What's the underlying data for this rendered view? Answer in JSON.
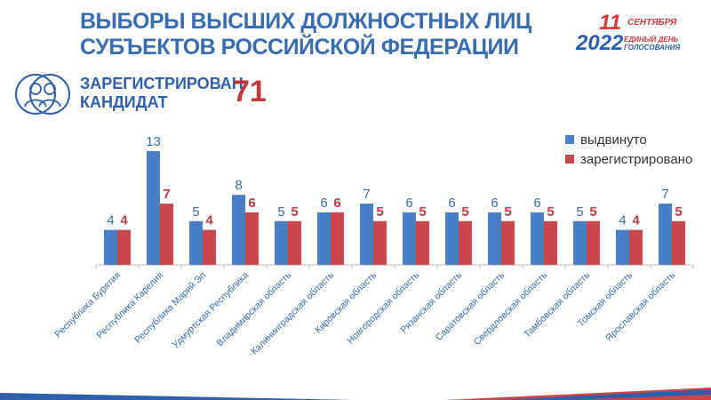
{
  "header": {
    "title_line1": "ВЫБОРЫ ВЫСШИХ ДОЛЖНОСТНЫХ ЛИЦ",
    "title_line2": "СУБЪЕКТОВ РОССИЙСКОЙ ФЕДЕРАЦИИ"
  },
  "logo": {
    "day": "11",
    "month": "СЕНТЯБРЯ",
    "year": "2022",
    "line1": "ЕДИНЫЙ ДЕНЬ",
    "line2": "ГОЛОСОВАНИЯ"
  },
  "summary": {
    "label_line1": "ЗАРЕГИСТРИРОВАН",
    "label_line2": "КАНДИДАТ",
    "value": "71",
    "icon": "people-icon"
  },
  "colors": {
    "series1": "#4a7ec4",
    "series2": "#c9474b",
    "title": "#3a6cb0",
    "accent_red": "#c0393d"
  },
  "chart_data": {
    "type": "bar",
    "categories": [
      "Республика Бурятия",
      "Республика Карелия",
      "Республика Марий Эл",
      "Удмуртская Республика",
      "Владимирская область",
      "Калининградская область",
      "Кировская область",
      "Новгородская область",
      "Рязанская область",
      "Саратовская область",
      "Свердловская область",
      "Тамбовская область",
      "Томская область",
      "Ярославская область"
    ],
    "series": [
      {
        "name": "выдвинуто",
        "values": [
          4,
          13,
          5,
          8,
          5,
          6,
          7,
          6,
          6,
          6,
          6,
          5,
          4,
          7
        ]
      },
      {
        "name": "зарегистрировано",
        "values": [
          4,
          7,
          4,
          6,
          5,
          6,
          5,
          5,
          5,
          5,
          5,
          5,
          4,
          5
        ]
      }
    ],
    "ylim": [
      0,
      13
    ],
    "legend_position": "top-right",
    "grid": false
  }
}
